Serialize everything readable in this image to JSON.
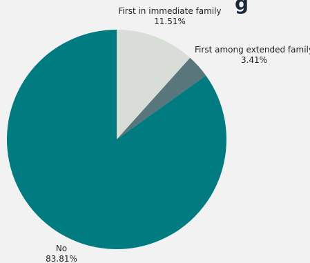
{
  "chart_data": {
    "type": "pie",
    "title_fragment": "g",
    "slices": [
      {
        "name": "First in immediate family",
        "value": 11.51,
        "label": "11.51%",
        "color": "#d8ddd8"
      },
      {
        "name": "First among extended family",
        "value": 3.41,
        "label": "3.41%",
        "color": "#58767c"
      },
      {
        "name": "No",
        "value": 83.81,
        "label": "83.81%",
        "color": "#007b80"
      }
    ],
    "start": "top",
    "direction": "clockwise"
  }
}
